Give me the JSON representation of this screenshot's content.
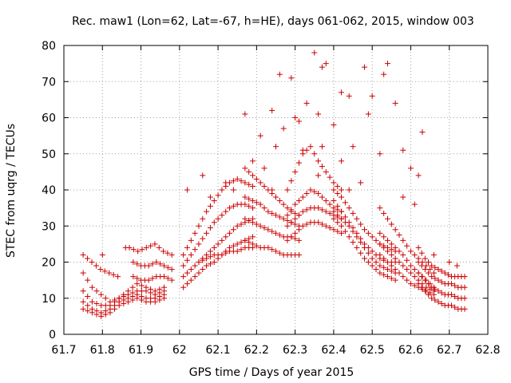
{
  "chart_data": {
    "type": "scatter",
    "title": "Rec. maw1 (Lon=62, Lat=-67, h=HE), days 061-062, 2015, window 003",
    "xlabel": "GPS time / Days of year 2015",
    "ylabel": "STEC from uqrg / TECUs",
    "xlim": [
      61.7,
      62.8
    ],
    "ylim": [
      0,
      80
    ],
    "xticks": [
      "61.7",
      "61.8",
      "61.9",
      "62",
      "62.1",
      "62.2",
      "62.3",
      "62.4",
      "62.5",
      "62.6",
      "62.7",
      "62.8"
    ],
    "yticks": [
      "0",
      "10",
      "20",
      "30",
      "40",
      "50",
      "60",
      "70",
      "80"
    ],
    "grid": true,
    "marker": "+",
    "color": "#cc0000",
    "tracks": [
      {
        "x0": 61.75,
        "x1": 61.96,
        "y": [
          17,
          13,
          11,
          9,
          10,
          12,
          14,
          13,
          12,
          13
        ]
      },
      {
        "x0": 61.75,
        "x1": 61.96,
        "y": [
          12,
          9,
          8,
          8,
          10,
          11,
          12,
          12,
          11,
          12
        ]
      },
      {
        "x0": 61.75,
        "x1": 61.96,
        "y": [
          9,
          7,
          6,
          7,
          9,
          10,
          11,
          10,
          10,
          11
        ]
      },
      {
        "x0": 61.75,
        "x1": 61.96,
        "y": [
          7,
          6,
          5,
          6,
          8,
          9,
          10,
          9,
          9,
          10
        ]
      },
      {
        "x0": 61.75,
        "x1": 61.84,
        "y": [
          22,
          20,
          18,
          17,
          16
        ]
      },
      {
        "x0": 61.87,
        "x1": 61.98,
        "y": [
          24,
          23,
          24,
          25,
          23,
          22
        ]
      },
      {
        "x0": 61.88,
        "x1": 61.98,
        "y": [
          20,
          19,
          19,
          20,
          19,
          18
        ]
      },
      {
        "x0": 61.88,
        "x1": 61.98,
        "y": [
          16,
          15,
          15,
          16,
          16,
          15
        ]
      },
      {
        "x0": 62.01,
        "x1": 62.19,
        "y": [
          22,
          26,
          30,
          34,
          37,
          40,
          42,
          43,
          42,
          41
        ]
      },
      {
        "x0": 62.01,
        "x1": 62.19,
        "y": [
          19,
          22,
          25,
          28,
          31,
          33,
          35,
          36,
          36,
          35
        ]
      },
      {
        "x0": 62.01,
        "x1": 62.19,
        "y": [
          16,
          18,
          20,
          22,
          24,
          26,
          28,
          30,
          31,
          32
        ]
      },
      {
        "x0": 62.01,
        "x1": 62.19,
        "y": [
          13,
          15,
          17,
          19,
          20,
          22,
          24,
          25,
          26,
          27
        ]
      },
      {
        "x0": 62.05,
        "x1": 62.19,
        "y": [
          20,
          21,
          22,
          22,
          23,
          23,
          24,
          24
        ]
      },
      {
        "x0": 62.17,
        "x1": 62.31,
        "y": [
          46,
          44,
          42,
          40,
          38,
          36,
          34,
          33
        ]
      },
      {
        "x0": 62.17,
        "x1": 62.31,
        "y": [
          38,
          37,
          36,
          34,
          33,
          32,
          31,
          30
        ]
      },
      {
        "x0": 62.17,
        "x1": 62.31,
        "y": [
          32,
          31,
          30,
          29,
          28,
          27,
          27,
          26
        ]
      },
      {
        "x0": 62.17,
        "x1": 62.31,
        "y": [
          26,
          25,
          24,
          24,
          23,
          22,
          22,
          22
        ]
      },
      {
        "x0": 62.28,
        "x1": 62.42,
        "y": [
          40,
          45,
          50,
          52,
          48,
          45,
          42,
          40
        ]
      },
      {
        "x0": 62.28,
        "x1": 62.42,
        "y": [
          33,
          36,
          38,
          40,
          39,
          37,
          35,
          34
        ]
      },
      {
        "x0": 62.28,
        "x1": 62.42,
        "y": [
          30,
          32,
          34,
          35,
          35,
          34,
          33,
          32
        ]
      },
      {
        "x0": 62.28,
        "x1": 62.42,
        "y": [
          26,
          28,
          30,
          31,
          31,
          30,
          29,
          28
        ]
      },
      {
        "x0": 62.4,
        "x1": 62.56,
        "y": [
          32,
          30,
          27,
          24,
          21,
          19,
          17,
          16,
          15
        ]
      },
      {
        "x0": 62.4,
        "x1": 62.56,
        "y": [
          34,
          32,
          30,
          27,
          24,
          21,
          19,
          18,
          17
        ]
      },
      {
        "x0": 62.4,
        "x1": 62.56,
        "y": [
          37,
          34,
          31,
          28,
          25,
          23,
          21,
          20,
          20
        ]
      },
      {
        "x0": 62.4,
        "x1": 62.56,
        "y": [
          40,
          38,
          35,
          32,
          29,
          27,
          25,
          24,
          23
        ]
      },
      {
        "x0": 62.52,
        "x1": 62.66,
        "y": [
          28,
          26,
          24,
          22,
          19,
          17,
          15,
          13
        ]
      },
      {
        "x0": 62.52,
        "x1": 62.66,
        "y": [
          25,
          23,
          21,
          19,
          17,
          15,
          13,
          12
        ]
      },
      {
        "x0": 62.52,
        "x1": 62.66,
        "y": [
          22,
          20,
          18,
          16,
          14,
          13,
          12,
          11
        ]
      },
      {
        "x0": 62.52,
        "x1": 62.66,
        "y": [
          35,
          32,
          29,
          26,
          23,
          21,
          19,
          17
        ]
      },
      {
        "x0": 62.62,
        "x1": 62.74,
        "y": [
          14,
          12,
          10,
          9,
          8,
          8,
          7,
          7
        ]
      },
      {
        "x0": 62.62,
        "x1": 62.74,
        "y": [
          17,
          15,
          13,
          12,
          11,
          11,
          10,
          10
        ]
      },
      {
        "x0": 62.62,
        "x1": 62.74,
        "y": [
          20,
          18,
          16,
          15,
          14,
          14,
          13,
          13
        ]
      },
      {
        "x0": 62.62,
        "x1": 62.74,
        "y": [
          24,
          21,
          19,
          18,
          17,
          16,
          16,
          16
        ]
      }
    ],
    "points": [
      [
        62.17,
        61
      ],
      [
        62.21,
        55
      ],
      [
        62.24,
        62
      ],
      [
        62.26,
        72
      ],
      [
        62.29,
        71
      ],
      [
        62.3,
        60
      ],
      [
        62.33,
        64
      ],
      [
        62.35,
        78
      ],
      [
        62.37,
        74
      ],
      [
        62.38,
        75
      ],
      [
        62.4,
        58
      ],
      [
        62.42,
        67
      ],
      [
        62.44,
        66
      ],
      [
        62.48,
        74
      ],
      [
        62.5,
        66
      ],
      [
        62.53,
        72
      ],
      [
        62.54,
        75
      ],
      [
        62.56,
        64
      ],
      [
        62.58,
        51
      ],
      [
        62.63,
        56
      ],
      [
        62.6,
        46
      ],
      [
        62.62,
        44
      ],
      [
        62.49,
        61
      ],
      [
        62.52,
        50
      ],
      [
        62.47,
        42
      ],
      [
        62.25,
        52
      ],
      [
        62.32,
        51
      ],
      [
        62.37,
        52
      ],
      [
        62.27,
        57
      ],
      [
        62.31,
        59
      ],
      [
        62.36,
        61
      ],
      [
        62.45,
        52
      ],
      [
        62.42,
        48
      ],
      [
        62.22,
        46
      ],
      [
        62.19,
        48
      ],
      [
        62.12,
        42
      ],
      [
        62.06,
        44
      ],
      [
        62.02,
        40
      ],
      [
        61.86,
        24
      ],
      [
        61.8,
        22
      ],
      [
        62.08,
        38
      ],
      [
        62.14,
        40
      ],
      [
        62.24,
        40
      ],
      [
        62.36,
        44
      ],
      [
        62.44,
        40
      ],
      [
        62.58,
        38
      ],
      [
        62.61,
        36
      ],
      [
        62.66,
        22
      ],
      [
        62.7,
        20
      ],
      [
        62.72,
        19
      ]
    ]
  }
}
